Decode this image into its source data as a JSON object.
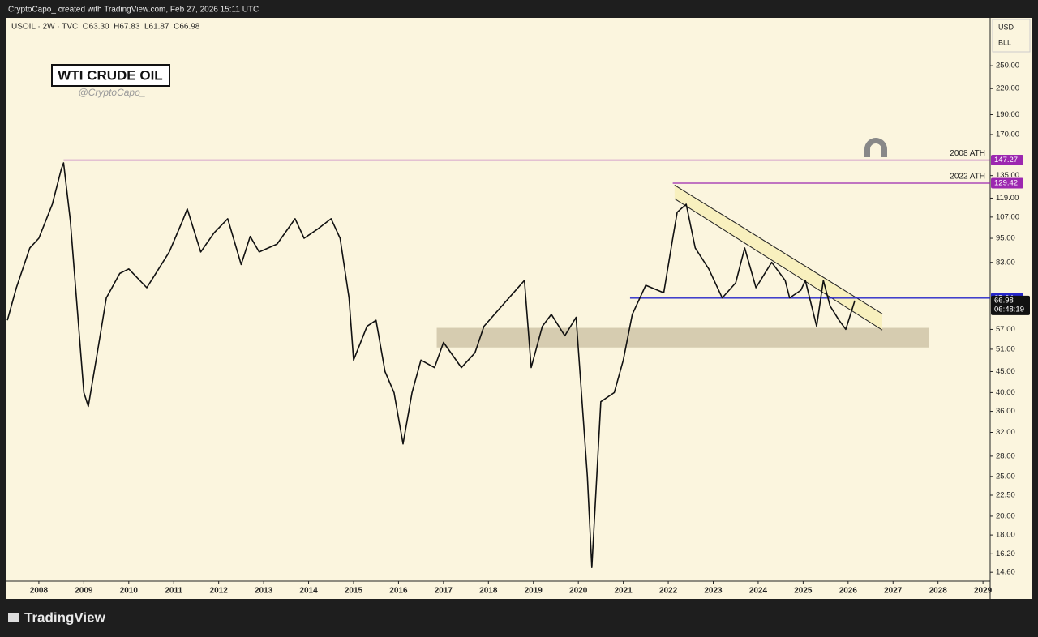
{
  "chart_data": {
    "type": "line",
    "header": "CryptoCapo_ created with TradingView.com, Feb 27, 2026 15:11 UTC",
    "symbol_legend": "USOIL · 2W · TVC  O63.30  H67.83  L61.87  C66.98",
    "title": "WTI CRUDE OIL",
    "subtitle": "@CryptoCapo_",
    "currency": "USD",
    "unit": "BLL",
    "brand": "TradingView",
    "color": "#111111",
    "log_scale": true,
    "xlim": [
      2007.28,
      2029.16
    ],
    "xticks": [
      2008,
      2009,
      2010,
      2011,
      2012,
      2013,
      2014,
      2015,
      2016,
      2017,
      2018,
      2019,
      2020,
      2021,
      2022,
      2023,
      2024,
      2025,
      2026,
      2027,
      2028,
      2029
    ],
    "ylim": [
      13.9,
      327
    ],
    "yticks": [
      {
        "value": 250,
        "label": "250.00"
      },
      {
        "value": 220,
        "label": "220.00"
      },
      {
        "value": 190,
        "label": "190.00"
      },
      {
        "value": 170,
        "label": "170.00"
      },
      {
        "value": 135,
        "label": "135.00"
      },
      {
        "value": 119,
        "label": "119.00"
      },
      {
        "value": 107,
        "label": "107.00"
      },
      {
        "value": 95,
        "label": "95.00"
      },
      {
        "value": 83,
        "label": "83.00"
      },
      {
        "value": 57,
        "label": "57.00"
      },
      {
        "value": 51,
        "label": "51.00"
      },
      {
        "value": 45,
        "label": "45.00"
      },
      {
        "value": 40,
        "label": "40.00"
      },
      {
        "value": 36,
        "label": "36.00"
      },
      {
        "value": 32,
        "label": "32.00"
      },
      {
        "value": 28,
        "label": "28.00"
      },
      {
        "value": 25,
        "label": "25.00"
      },
      {
        "value": 22.5,
        "label": "22.50"
      },
      {
        "value": 20,
        "label": "20.00"
      },
      {
        "value": 18,
        "label": "18.00"
      },
      {
        "value": 16.2,
        "label": "16.20"
      },
      {
        "value": 14.6,
        "label": "14.60"
      }
    ],
    "x": [
      2007.3,
      2007.5,
      2007.8,
      2008.0,
      2008.3,
      2008.5,
      2008.55,
      2008.7,
      2008.85,
      2009.0,
      2009.1,
      2009.3,
      2009.5,
      2009.8,
      2010.0,
      2010.4,
      2010.6,
      2010.9,
      2011.2,
      2011.3,
      2011.6,
      2011.9,
      2012.2,
      2012.5,
      2012.7,
      2012.9,
      2013.3,
      2013.7,
      2013.9,
      2014.2,
      2014.5,
      2014.7,
      2014.9,
      2015.0,
      2015.3,
      2015.5,
      2015.7,
      2015.9,
      2016.1,
      2016.3,
      2016.5,
      2016.8,
      2017.0,
      2017.4,
      2017.7,
      2017.9,
      2018.3,
      2018.8,
      2018.95,
      2019.2,
      2019.4,
      2019.7,
      2019.95,
      2020.2,
      2020.3,
      2020.5,
      2020.8,
      2021.0,
      2021.2,
      2021.5,
      2021.9,
      2022.1,
      2022.2,
      2022.4,
      2022.6,
      2022.9,
      2023.2,
      2023.5,
      2023.7,
      2023.95,
      2024.3,
      2024.6,
      2024.7,
      2024.95,
      2025.05,
      2025.3,
      2025.45,
      2025.6,
      2025.8,
      2025.95,
      2026.15
    ],
    "values": [
      60,
      72,
      90,
      95,
      115,
      140,
      145,
      105,
      65,
      40,
      37,
      50,
      68,
      78,
      80,
      72,
      78,
      88,
      105,
      112,
      88,
      98,
      106,
      82,
      96,
      88,
      92,
      106,
      95,
      100,
      106,
      95,
      68,
      48,
      58,
      60,
      45,
      40,
      30,
      40,
      48,
      46,
      53,
      46,
      50,
      58,
      65,
      75,
      46,
      58,
      62,
      55,
      61,
      25,
      15,
      38,
      40,
      48,
      62,
      73,
      70,
      95,
      110,
      115,
      90,
      80,
      68,
      74,
      90,
      72,
      83,
      75,
      68,
      71,
      75,
      58,
      75,
      65,
      60,
      57,
      67
    ],
    "levels": [
      {
        "label": "2008 ATH",
        "value": 147.27,
        "from": 2008.55,
        "color": "#9c27b0"
      },
      {
        "label": "2022 ATH",
        "value": 129.42,
        "from": 2022.1,
        "color": "#9c27b0"
      },
      {
        "value": 67.94,
        "from": 2021.15,
        "color": "#2626c9"
      }
    ],
    "zone": {
      "low": 51.5,
      "high": 57.5,
      "from": 2016.85,
      "to": 2027.8,
      "color": "#d6ccb0"
    },
    "channel": {
      "upper": [
        [
          2022.14,
          128
        ],
        [
          2026.76,
          62.2
        ]
      ],
      "lower": [
        [
          2022.14,
          118.6
        ],
        [
          2026.76,
          56.8
        ]
      ],
      "color": "#f7efb8"
    },
    "last_price": {
      "value": 66.98,
      "countdown": "06:48:19"
    }
  }
}
